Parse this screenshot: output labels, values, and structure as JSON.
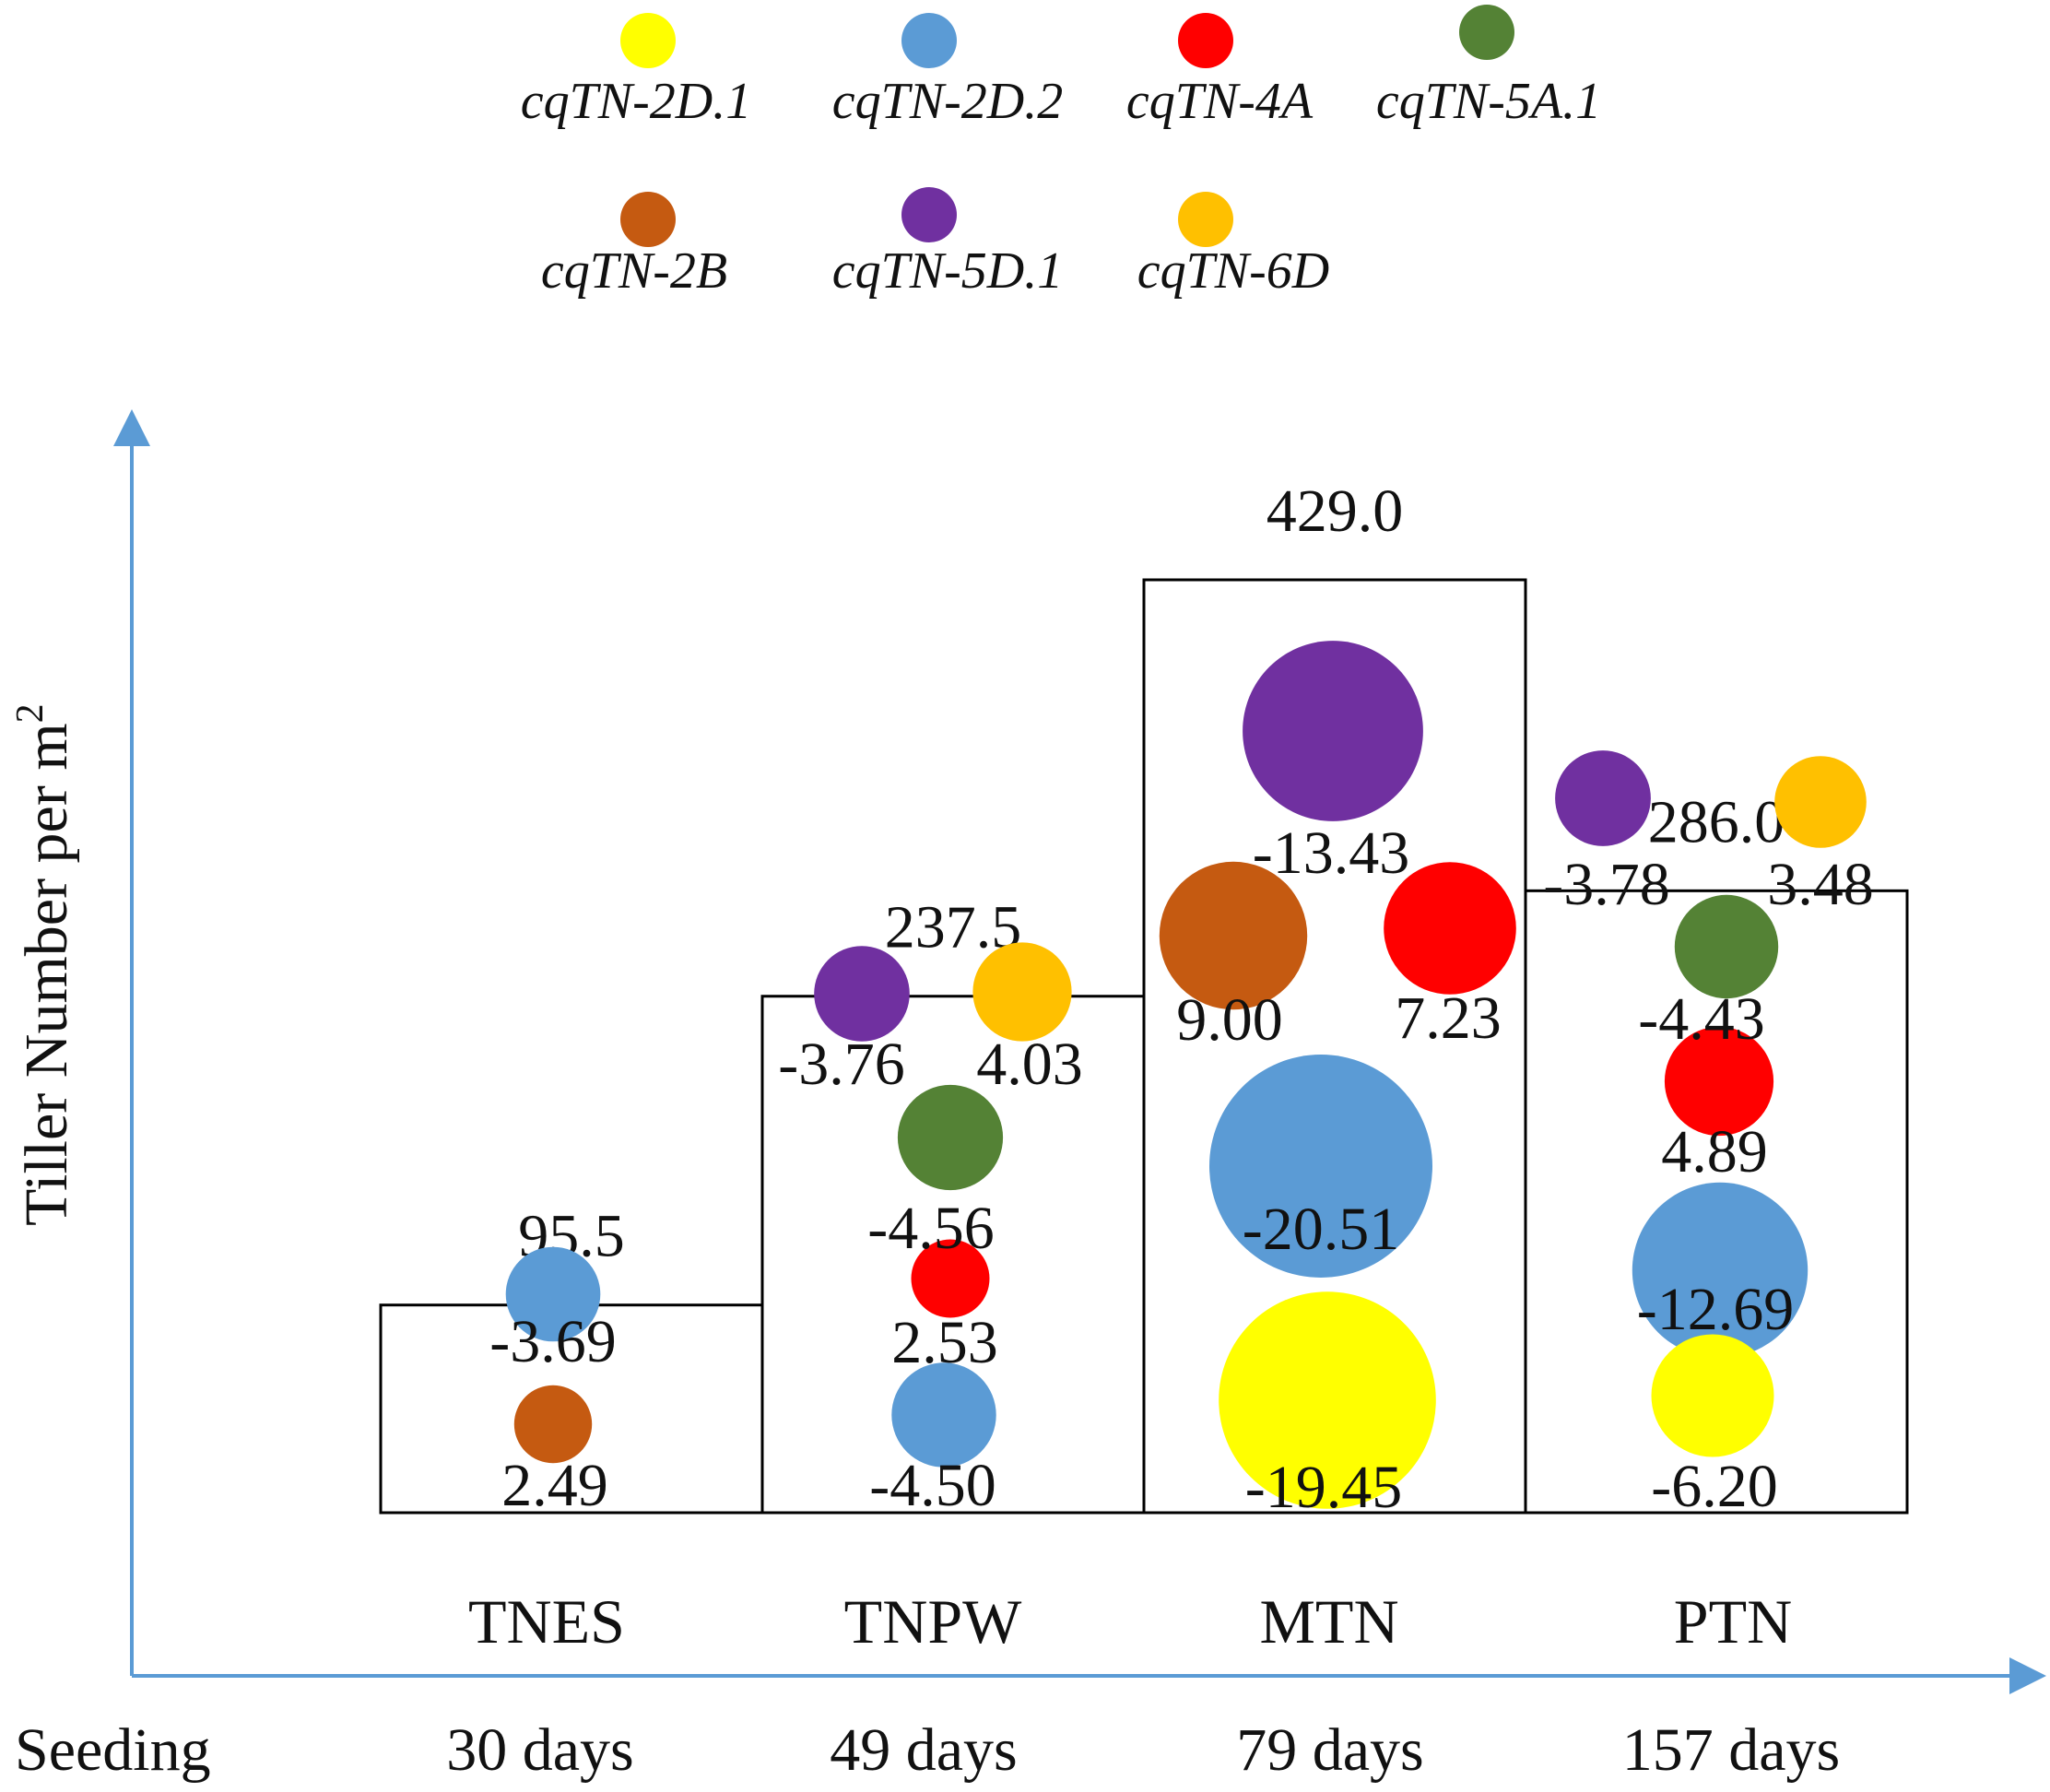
{
  "chart_data": {
    "type": "bubble-bar",
    "ylabel": "Tiller Number per m",
    "ylabel_superscript": "2",
    "xlabel": "Seeding",
    "legend": [
      {
        "key": "cqTN-2D.1",
        "label": "cqTN-2D.1",
        "color": "#FFFF00"
      },
      {
        "key": "cqTN-2D.2",
        "label": "cqTN-2D.2",
        "color": "#5B9BD5"
      },
      {
        "key": "cqTN-4A",
        "label": "cqTN-4A",
        "color": "#FF0000"
      },
      {
        "key": "cqTN-5A.1",
        "label": "cqTN-5A.1",
        "color": "#548235"
      },
      {
        "key": "cqTN-2B",
        "label": "cqTN-2B",
        "color": "#C55A11"
      },
      {
        "key": "cqTN-5D.1",
        "label": "cqTN-5D.1",
        "color": "#7030A0"
      },
      {
        "key": "cqTN-6D",
        "label": "cqTN-6D",
        "color": "#FFC000"
      }
    ],
    "categories": [
      {
        "name": "TNES",
        "days": "30 days",
        "total": 95.5,
        "total_label": "95.5",
        "effects": [
          {
            "qtl": "cqTN-2D.2",
            "value": -3.69,
            "label": "-3.69"
          },
          {
            "qtl": "cqTN-2B",
            "value": 2.49,
            "label": "2.49"
          }
        ]
      },
      {
        "name": "TNPW",
        "days": "49 days",
        "total": 237.5,
        "total_label": "237.5",
        "effects": [
          {
            "qtl": "cqTN-5D.1",
            "value": -3.76,
            "label": "-3.76"
          },
          {
            "qtl": "cqTN-6D",
            "value": 4.03,
            "label": "4.03"
          },
          {
            "qtl": "cqTN-5A.1",
            "value": -4.56,
            "label": "-4.56"
          },
          {
            "qtl": "cqTN-4A",
            "value": 2.53,
            "label": "2.53"
          },
          {
            "qtl": "cqTN-2D.2",
            "value": -4.5,
            "label": "-4.50"
          }
        ]
      },
      {
        "name": "MTN",
        "days": "79 days",
        "total": 429.0,
        "total_label": "429.0",
        "effects": [
          {
            "qtl": "cqTN-5D.1",
            "value": -13.43,
            "label": "-13.43"
          },
          {
            "qtl": "cqTN-2B",
            "value": 9.0,
            "label": "9.00"
          },
          {
            "qtl": "cqTN-4A",
            "value": 7.23,
            "label": "7.23"
          },
          {
            "qtl": "cqTN-2D.2",
            "value": -20.51,
            "label": "-20.51"
          },
          {
            "qtl": "cqTN-2D.1",
            "value": -19.45,
            "label": "-19.45"
          }
        ]
      },
      {
        "name": "PTN",
        "days": "157 days",
        "total": 286.0,
        "total_label": "286.0",
        "effects": [
          {
            "qtl": "cqTN-5D.1",
            "value": -3.78,
            "label": "-3.78"
          },
          {
            "qtl": "cqTN-6D",
            "value": 3.48,
            "label": "3.48"
          },
          {
            "qtl": "cqTN-5A.1",
            "value": -4.43,
            "label": "-4.43"
          },
          {
            "qtl": "cqTN-4A",
            "value": 4.89,
            "label": "4.89"
          },
          {
            "qtl": "cqTN-2D.2",
            "value": -12.69,
            "label": "-12.69"
          },
          {
            "qtl": "cqTN-2D.1",
            "value": -6.2,
            "label": "-6.20"
          }
        ]
      }
    ],
    "axis_color": "#5B9BD5"
  }
}
